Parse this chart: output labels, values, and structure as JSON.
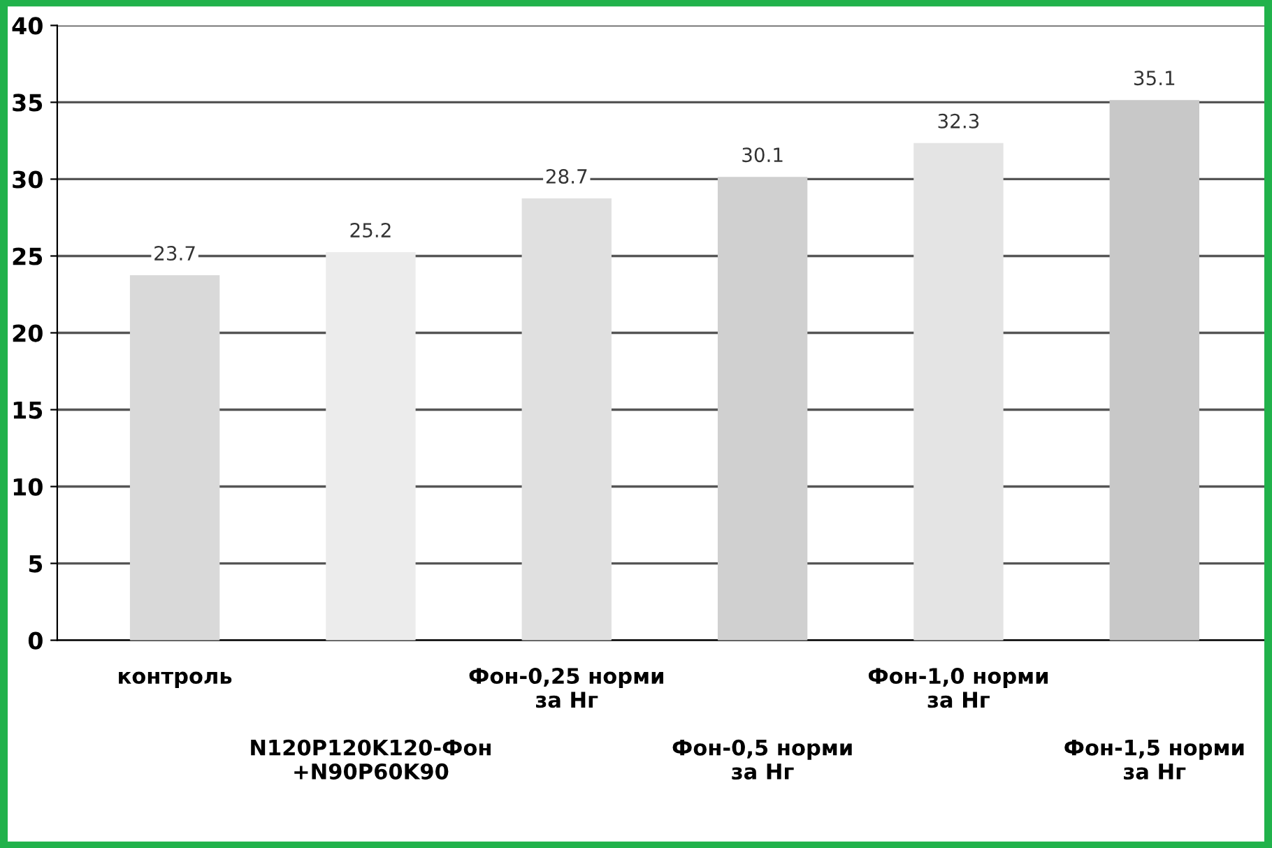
{
  "chart_data": {
    "type": "bar",
    "categories": [
      "контроль",
      "N120P120K120-Фон\n+N90P60K90",
      "Фон-0,25 норми\nза Нг",
      "Фон-0,5 норми\nза Нг",
      "Фон-1,0 норми\nза Нг",
      "Фон-1,5 норми\nза Нг"
    ],
    "values": [
      23.7,
      25.2,
      28.7,
      30.1,
      32.3,
      35.1
    ],
    "colors": [
      "#d9d9d9",
      "#ececec",
      "#e0e0e0",
      "#d0d0d0",
      "#e4e4e4",
      "#c8c8c8"
    ],
    "ylim": [
      0,
      40
    ],
    "yticks": [
      0,
      5,
      10,
      15,
      20,
      25,
      30,
      35,
      40
    ],
    "grid": "y",
    "data_labels": true
  }
}
